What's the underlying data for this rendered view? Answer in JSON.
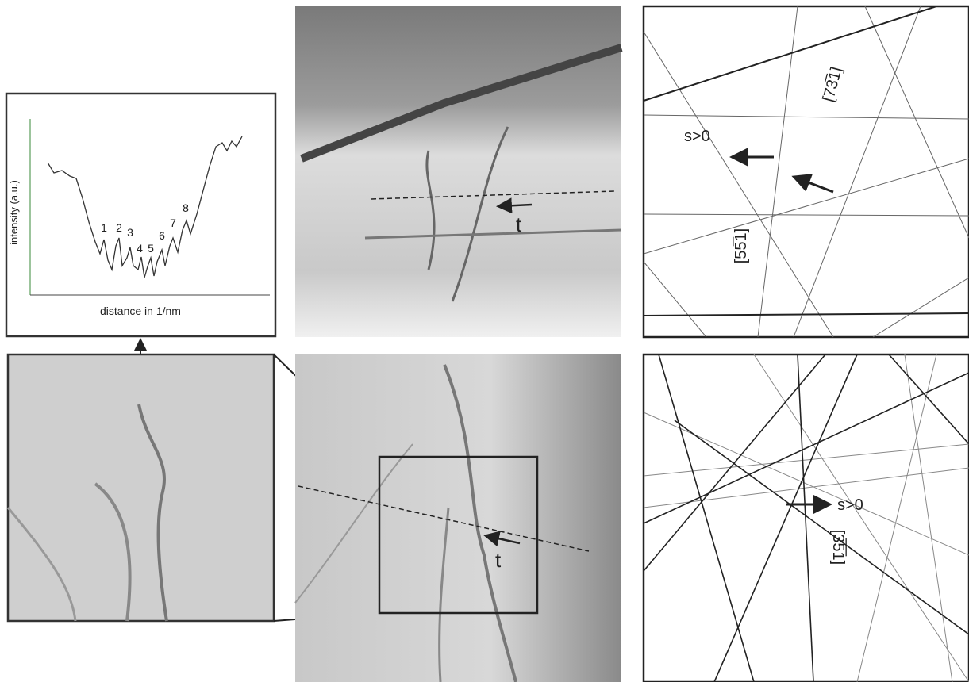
{
  "plot": {
    "y_label": "intensity (a.u.)",
    "x_label": "distance in 1/nm",
    "peak_labels": [
      "1",
      "2",
      "3",
      "4",
      "5",
      "6",
      "7",
      "8"
    ]
  },
  "top_image": {
    "direction_label": "t"
  },
  "bottom_image": {
    "direction_label": "t"
  },
  "top_diagram": {
    "deviation_label": "s>0",
    "directions": [
      "[73̅1]",
      "[55̅1]"
    ]
  },
  "bottom_diagram": {
    "deviation_label": "s>0",
    "direction": "[3̅5̅1]"
  }
}
